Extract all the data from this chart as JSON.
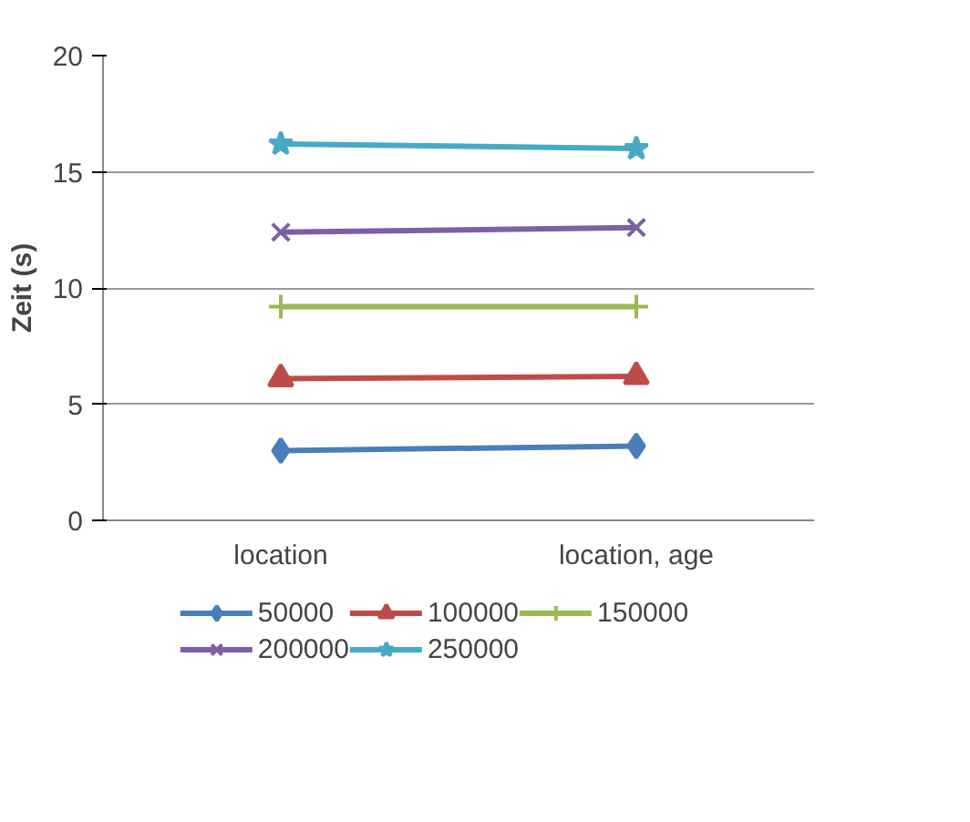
{
  "chart_data": {
    "type": "line",
    "ylabel": "Zeit (s)",
    "categories": [
      "location",
      "location, age"
    ],
    "ylim": [
      0,
      20
    ],
    "yticks": [
      0,
      5,
      10,
      15,
      20
    ],
    "grid": "y",
    "legend": "bottom",
    "series": [
      {
        "name": "50000",
        "color": "#4a7ebb",
        "marker": "diamond",
        "values": [
          3.0,
          3.2
        ]
      },
      {
        "name": "100000",
        "color": "#be4b48",
        "marker": "triangle",
        "values": [
          6.1,
          6.2
        ]
      },
      {
        "name": "150000",
        "color": "#98b954",
        "marker": "cross",
        "values": [
          9.2,
          9.2
        ]
      },
      {
        "name": "200000",
        "color": "#7d60a0",
        "marker": "x",
        "values": [
          12.4,
          12.6
        ]
      },
      {
        "name": "250000",
        "color": "#46aac5",
        "marker": "star",
        "values": [
          16.2,
          16.0
        ]
      }
    ]
  }
}
